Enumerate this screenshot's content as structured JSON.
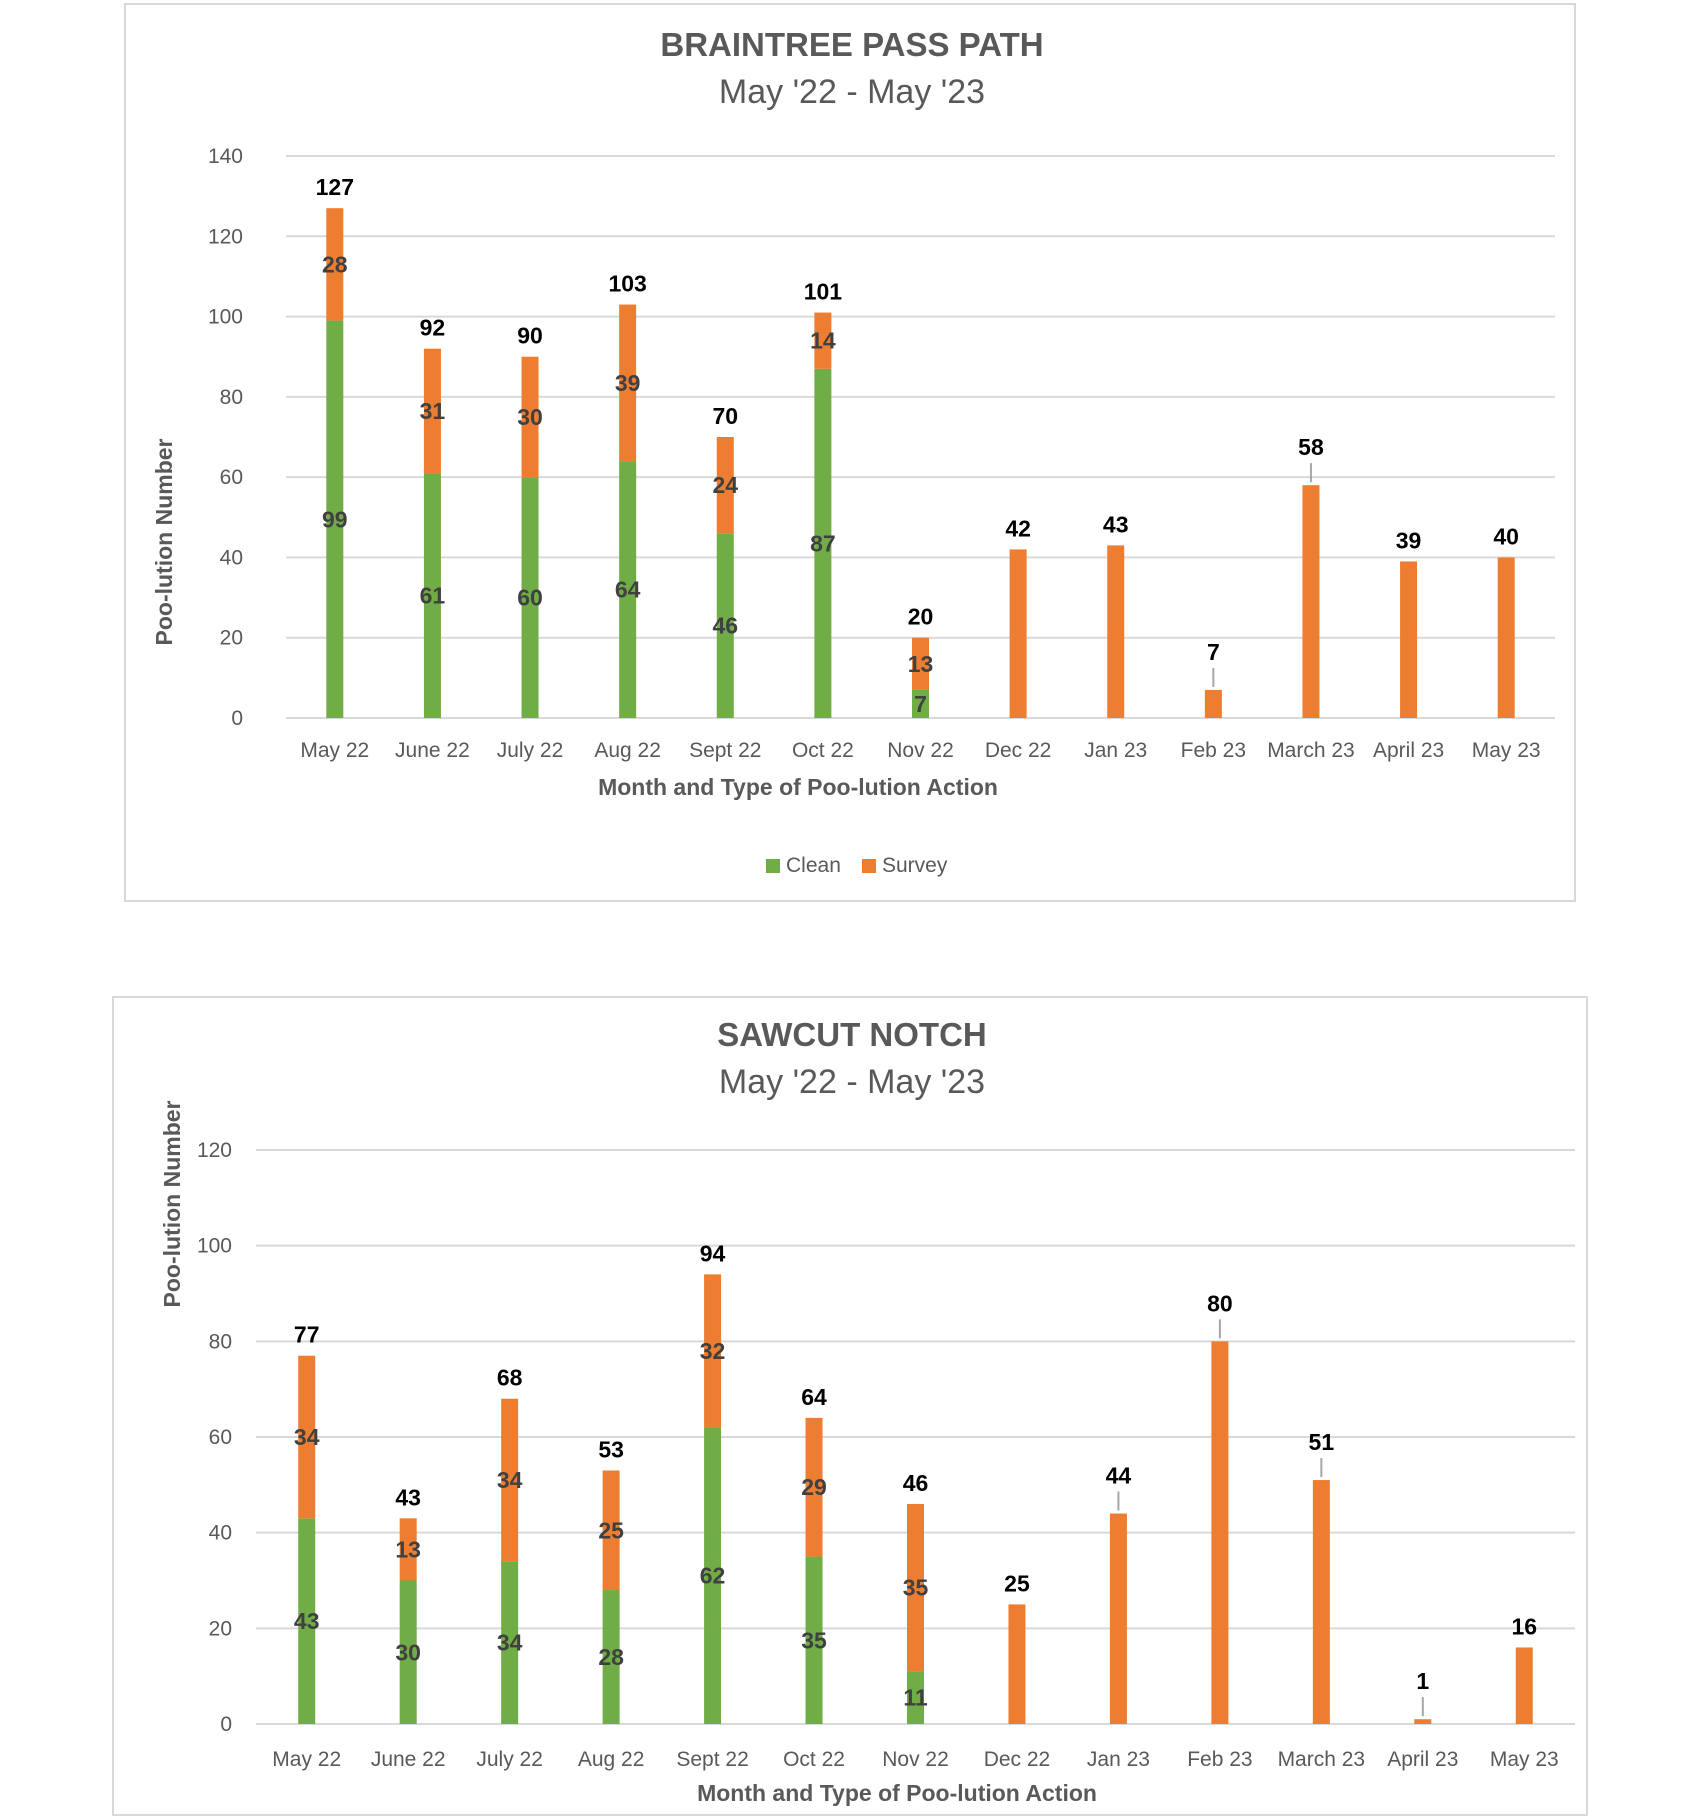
{
  "chart_data": [
    {
      "type": "bar",
      "stacked": true,
      "title": "BRAINTREE PASS PATH",
      "subtitle": "May '22 - May '23",
      "xlabel": "Month and Type of Poo-lution Action",
      "ylabel": "Poo-lution Number",
      "ylim": [
        0,
        140
      ],
      "yticks": [
        0,
        20,
        40,
        60,
        80,
        100,
        120,
        140
      ],
      "grid": true,
      "legend_position": "bottom",
      "categories": [
        "May 22",
        "June 22",
        "July 22",
        "Aug 22",
        "Sept 22",
        "Oct 22",
        "Nov 22",
        "Dec 22",
        "Jan 23",
        "Feb 23",
        "March 23",
        "April 23",
        "May 23"
      ],
      "series": [
        {
          "name": "Clean",
          "color": "#70ad47",
          "values": [
            99,
            61,
            60,
            64,
            46,
            87,
            7,
            null,
            null,
            null,
            null,
            null,
            null
          ]
        },
        {
          "name": "Survey",
          "color": "#ed7d31",
          "values": [
            28,
            31,
            30,
            39,
            24,
            14,
            13,
            42,
            43,
            7,
            58,
            39,
            40
          ]
        }
      ],
      "totals": [
        127,
        92,
        90,
        103,
        70,
        101,
        20,
        42,
        43,
        7,
        58,
        39,
        40
      ],
      "leader_lines": [
        9,
        10
      ]
    },
    {
      "type": "bar",
      "stacked": true,
      "title": "SAWCUT NOTCH",
      "subtitle": "May '22 - May '23",
      "xlabel": "Month and Type of Poo-lution Action",
      "ylabel": "Poo-lution Number",
      "ylim": [
        0,
        120
      ],
      "yticks": [
        0,
        20,
        40,
        60,
        80,
        100,
        120
      ],
      "grid": true,
      "categories": [
        "May 22",
        "June 22",
        "July 22",
        "Aug 22",
        "Sept 22",
        "Oct 22",
        "Nov 22",
        "Dec 22",
        "Jan 23",
        "Feb 23",
        "March 23",
        "April 23",
        "May 23"
      ],
      "series": [
        {
          "name": "Clean",
          "color": "#70ad47",
          "values": [
            43,
            30,
            34,
            28,
            62,
            35,
            11,
            null,
            null,
            null,
            null,
            null,
            null
          ]
        },
        {
          "name": "Survey",
          "color": "#ed7d31",
          "values": [
            34,
            13,
            34,
            25,
            32,
            29,
            35,
            25,
            44,
            80,
            51,
            1,
            16
          ]
        }
      ],
      "totals": [
        77,
        43,
        68,
        53,
        94,
        64,
        46,
        25,
        44,
        80,
        51,
        1,
        16
      ],
      "leader_lines": [
        8,
        9,
        10,
        11
      ]
    }
  ]
}
